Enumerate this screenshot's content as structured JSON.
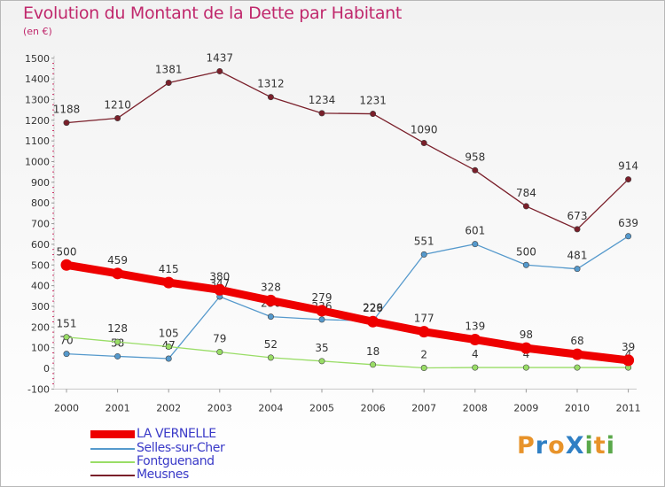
{
  "header": {
    "title": "Evolution du Montant de la Dette par Habitant",
    "subtitle": "(en €)"
  },
  "logo": {
    "text": "ProXiti"
  },
  "chart_data": {
    "type": "line",
    "title": "Evolution du Montant de la Dette par Habitant",
    "subtitle": "(en €)",
    "x": [
      "2000",
      "2001",
      "2002",
      "2003",
      "2004",
      "2005",
      "2006",
      "2007",
      "2008",
      "2009",
      "2010",
      "2011"
    ],
    "ylim": [
      -100,
      1500
    ],
    "yticks": [
      -100,
      0,
      100,
      200,
      300,
      400,
      500,
      600,
      700,
      800,
      900,
      1000,
      1100,
      1200,
      1300,
      1400,
      1500
    ],
    "grid": false,
    "legend_position": "bottom-left",
    "series": [
      {
        "name": "Meusnes",
        "color": "#7a1f2a",
        "values": [
          1188,
          1210,
          1381,
          1437,
          1312,
          1234,
          1231,
          1090,
          958,
          784,
          673,
          914
        ]
      },
      {
        "name": "Selles-sur-Cher",
        "color": "#5599cc",
        "values": [
          70,
          58,
          47,
          347,
          250,
          236,
          229,
          551,
          601,
          500,
          481,
          639
        ]
      },
      {
        "name": "Fontguenand",
        "color": "#99dd66",
        "values": [
          151,
          128,
          105,
          79,
          52,
          35,
          18,
          2,
          4,
          4,
          4,
          4
        ]
      },
      {
        "name": "LA VERNELLE",
        "color": "#ee0000",
        "values": [
          500,
          459,
          415,
          380,
          328,
          279,
          226,
          177,
          139,
          98,
          68,
          39
        ]
      }
    ],
    "legend_order": [
      "LA VERNELLE",
      "Selles-sur-Cher",
      "Fontguenand",
      "Meusnes"
    ]
  }
}
